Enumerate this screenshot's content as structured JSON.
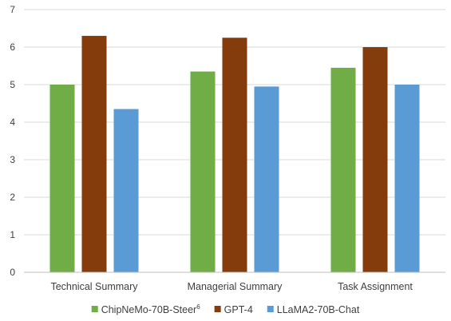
{
  "chart_data": {
    "type": "bar",
    "categories": [
      "Technical Summary",
      "Managerial Summary",
      "Task Assignment"
    ],
    "series": [
      {
        "name": "ChipNeMo-70B-Steer",
        "name_sup": "6",
        "color": "#70ad47",
        "values": [
          5.0,
          5.35,
          5.45
        ]
      },
      {
        "name": "GPT-4",
        "color": "#843c0c",
        "values": [
          6.3,
          6.25,
          6.0
        ]
      },
      {
        "name": "LLaMA2-70B-Chat",
        "color": "#5b9bd5",
        "values": [
          4.35,
          4.95,
          5.0
        ]
      }
    ],
    "ylim": [
      0,
      7
    ],
    "yticks": [
      0,
      1,
      2,
      3,
      4,
      5,
      6,
      7
    ],
    "grid": true,
    "legend_position": "bottom"
  }
}
